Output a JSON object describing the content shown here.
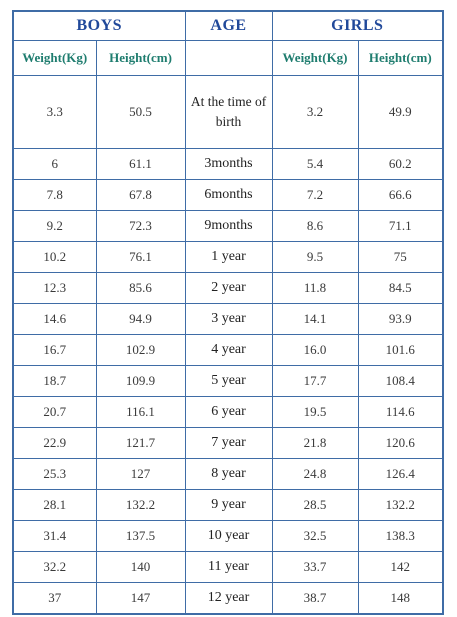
{
  "headers": {
    "boys": "BOYS",
    "age": "AGE",
    "girls": "GIRLS",
    "boys_weight": "Weight(Kg)",
    "boys_height": "Height(cm)",
    "girls_weight": "Weight(Kg)",
    "girls_height": "Height(cm)"
  },
  "rows": [
    {
      "boy_w": "3.3",
      "boy_h": "50.5",
      "age": "At the time of birth",
      "girl_w": "3.2",
      "girl_h": "49.9"
    },
    {
      "boy_w": "6",
      "boy_h": "61.1",
      "age": "3months",
      "girl_w": "5.4",
      "girl_h": "60.2"
    },
    {
      "boy_w": "7.8",
      "boy_h": "67.8",
      "age": "6months",
      "girl_w": "7.2",
      "girl_h": "66.6"
    },
    {
      "boy_w": "9.2",
      "boy_h": "72.3",
      "age": "9months",
      "girl_w": "8.6",
      "girl_h": "71.1"
    },
    {
      "boy_w": "10.2",
      "boy_h": "76.1",
      "age": "1 year",
      "girl_w": "9.5",
      "girl_h": "75"
    },
    {
      "boy_w": "12.3",
      "boy_h": "85.6",
      "age": "2 year",
      "girl_w": "11.8",
      "girl_h": "84.5"
    },
    {
      "boy_w": "14.6",
      "boy_h": "94.9",
      "age": "3 year",
      "girl_w": "14.1",
      "girl_h": "93.9"
    },
    {
      "boy_w": "16.7",
      "boy_h": "102.9",
      "age": "4 year",
      "girl_w": "16.0",
      "girl_h": "101.6"
    },
    {
      "boy_w": "18.7",
      "boy_h": "109.9",
      "age": "5 year",
      "girl_w": "17.7",
      "girl_h": "108.4"
    },
    {
      "boy_w": "20.7",
      "boy_h": "116.1",
      "age": "6 year",
      "girl_w": "19.5",
      "girl_h": "114.6"
    },
    {
      "boy_w": "22.9",
      "boy_h": "121.7",
      "age": "7 year",
      "girl_w": "21.8",
      "girl_h": "120.6"
    },
    {
      "boy_w": "25.3",
      "boy_h": "127",
      "age": "8 year",
      "girl_w": "24.8",
      "girl_h": "126.4"
    },
    {
      "boy_w": "28.1",
      "boy_h": "132.2",
      "age": "9 year",
      "girl_w": "28.5",
      "girl_h": "132.2"
    },
    {
      "boy_w": "31.4",
      "boy_h": "137.5",
      "age": "10 year",
      "girl_w": "32.5",
      "girl_h": "138.3"
    },
    {
      "boy_w": "32.2",
      "boy_h": "140",
      "age": "11 year",
      "girl_w": "33.7",
      "girl_h": "142"
    },
    {
      "boy_w": "37",
      "boy_h": "147",
      "age": "12 year",
      "girl_w": "38.7",
      "girl_h": "148"
    }
  ],
  "colors": {
    "border": "#3f6ca6",
    "group_header": "#21499a",
    "sub_header": "#1f7d6f"
  }
}
